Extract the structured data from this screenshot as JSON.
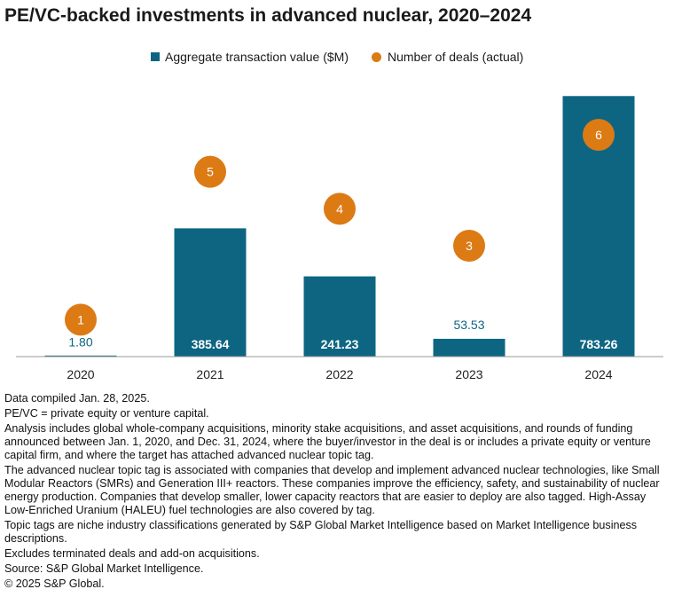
{
  "chart_data": {
    "type": "bar",
    "title": "PE/VC-backed investments in advanced nuclear, 2020–2024",
    "categories": [
      "2020",
      "2021",
      "2022",
      "2023",
      "2024"
    ],
    "series": [
      {
        "name": "Aggregate transaction value ($M)",
        "kind": "bar",
        "color": "#0e6582",
        "values": [
          1.8,
          385.64,
          241.23,
          53.53,
          783.26
        ],
        "value_labels": [
          "1.80",
          "385.64",
          "241.23",
          "53.53",
          "783.26"
        ]
      },
      {
        "name": "Number of deals (actual)",
        "kind": "marker",
        "color": "#dc7a14",
        "values": [
          1,
          5,
          4,
          3,
          6
        ]
      }
    ],
    "bar_ylim": [
      0,
      800
    ],
    "deals_ylim": [
      0,
      7.2
    ],
    "grid": false,
    "legend_position": "top"
  },
  "notes": [
    "Data compiled Jan. 28, 2025.",
    "PE/VC = private equity or venture capital.",
    "Analysis includes global whole-company acquisitions, minority stake acquisitions, and asset acquisitions, and rounds of funding announced between Jan. 1, 2020, and Dec. 31, 2024, where the buyer/investor in the deal is or includes a private equity or venture capital firm, and where the target has attached advanced nuclear topic tag.",
    "The advanced nuclear topic tag is associated with companies that develop and implement advanced nuclear technologies, like Small Modular Reactors (SMRs) and Generation III+ reactors. These companies improve the efficiency, safety, and sustainability of nuclear energy production. Companies that develop smaller, lower capacity reactors that are easier to deploy are also tagged. High-Assay Low-Enriched Uranium (HALEU) fuel technologies are also covered by tag.",
    "Topic tags are niche industry classifications generated by S&P Global Market Intelligence based on Market Intelligence business descriptions.",
    "Excludes terminated deals and add-on acquisitions.",
    "Source: S&P Global Market Intelligence.",
    "© 2025 S&P Global."
  ]
}
